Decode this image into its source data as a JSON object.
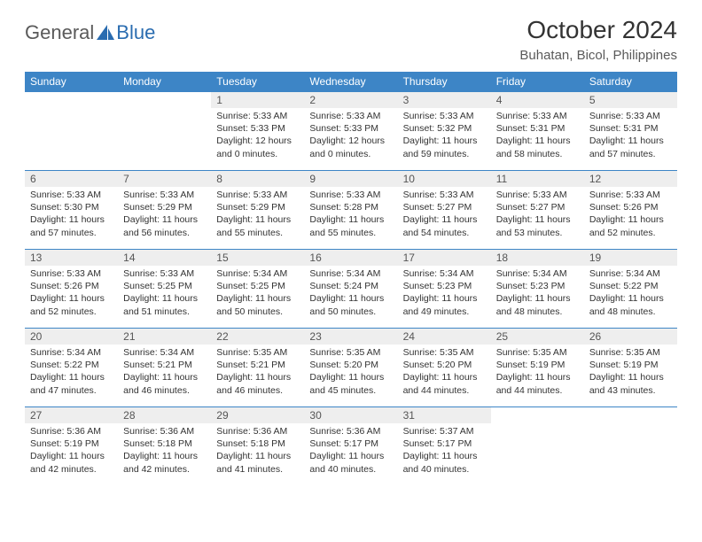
{
  "brand": {
    "part1": "General",
    "part2": "Blue"
  },
  "title": "October 2024",
  "location": "Buhatan, Bicol, Philippines",
  "colors": {
    "header_bg": "#3d85c6",
    "header_text": "#ffffff",
    "daynum_bg": "#eeeeee",
    "cell_border": "#3d85c6",
    "body_text": "#333333",
    "logo_gray": "#5a5a5a",
    "logo_blue": "#2a6cb0"
  },
  "weekdays": [
    "Sunday",
    "Monday",
    "Tuesday",
    "Wednesday",
    "Thursday",
    "Friday",
    "Saturday"
  ],
  "weeks": [
    [
      null,
      null,
      {
        "n": "1",
        "sr": "Sunrise: 5:33 AM",
        "ss": "Sunset: 5:33 PM",
        "dl": "Daylight: 12 hours and 0 minutes."
      },
      {
        "n": "2",
        "sr": "Sunrise: 5:33 AM",
        "ss": "Sunset: 5:33 PM",
        "dl": "Daylight: 12 hours and 0 minutes."
      },
      {
        "n": "3",
        "sr": "Sunrise: 5:33 AM",
        "ss": "Sunset: 5:32 PM",
        "dl": "Daylight: 11 hours and 59 minutes."
      },
      {
        "n": "4",
        "sr": "Sunrise: 5:33 AM",
        "ss": "Sunset: 5:31 PM",
        "dl": "Daylight: 11 hours and 58 minutes."
      },
      {
        "n": "5",
        "sr": "Sunrise: 5:33 AM",
        "ss": "Sunset: 5:31 PM",
        "dl": "Daylight: 11 hours and 57 minutes."
      }
    ],
    [
      {
        "n": "6",
        "sr": "Sunrise: 5:33 AM",
        "ss": "Sunset: 5:30 PM",
        "dl": "Daylight: 11 hours and 57 minutes."
      },
      {
        "n": "7",
        "sr": "Sunrise: 5:33 AM",
        "ss": "Sunset: 5:29 PM",
        "dl": "Daylight: 11 hours and 56 minutes."
      },
      {
        "n": "8",
        "sr": "Sunrise: 5:33 AM",
        "ss": "Sunset: 5:29 PM",
        "dl": "Daylight: 11 hours and 55 minutes."
      },
      {
        "n": "9",
        "sr": "Sunrise: 5:33 AM",
        "ss": "Sunset: 5:28 PM",
        "dl": "Daylight: 11 hours and 55 minutes."
      },
      {
        "n": "10",
        "sr": "Sunrise: 5:33 AM",
        "ss": "Sunset: 5:27 PM",
        "dl": "Daylight: 11 hours and 54 minutes."
      },
      {
        "n": "11",
        "sr": "Sunrise: 5:33 AM",
        "ss": "Sunset: 5:27 PM",
        "dl": "Daylight: 11 hours and 53 minutes."
      },
      {
        "n": "12",
        "sr": "Sunrise: 5:33 AM",
        "ss": "Sunset: 5:26 PM",
        "dl": "Daylight: 11 hours and 52 minutes."
      }
    ],
    [
      {
        "n": "13",
        "sr": "Sunrise: 5:33 AM",
        "ss": "Sunset: 5:26 PM",
        "dl": "Daylight: 11 hours and 52 minutes."
      },
      {
        "n": "14",
        "sr": "Sunrise: 5:33 AM",
        "ss": "Sunset: 5:25 PM",
        "dl": "Daylight: 11 hours and 51 minutes."
      },
      {
        "n": "15",
        "sr": "Sunrise: 5:34 AM",
        "ss": "Sunset: 5:25 PM",
        "dl": "Daylight: 11 hours and 50 minutes."
      },
      {
        "n": "16",
        "sr": "Sunrise: 5:34 AM",
        "ss": "Sunset: 5:24 PM",
        "dl": "Daylight: 11 hours and 50 minutes."
      },
      {
        "n": "17",
        "sr": "Sunrise: 5:34 AM",
        "ss": "Sunset: 5:23 PM",
        "dl": "Daylight: 11 hours and 49 minutes."
      },
      {
        "n": "18",
        "sr": "Sunrise: 5:34 AM",
        "ss": "Sunset: 5:23 PM",
        "dl": "Daylight: 11 hours and 48 minutes."
      },
      {
        "n": "19",
        "sr": "Sunrise: 5:34 AM",
        "ss": "Sunset: 5:22 PM",
        "dl": "Daylight: 11 hours and 48 minutes."
      }
    ],
    [
      {
        "n": "20",
        "sr": "Sunrise: 5:34 AM",
        "ss": "Sunset: 5:22 PM",
        "dl": "Daylight: 11 hours and 47 minutes."
      },
      {
        "n": "21",
        "sr": "Sunrise: 5:34 AM",
        "ss": "Sunset: 5:21 PM",
        "dl": "Daylight: 11 hours and 46 minutes."
      },
      {
        "n": "22",
        "sr": "Sunrise: 5:35 AM",
        "ss": "Sunset: 5:21 PM",
        "dl": "Daylight: 11 hours and 46 minutes."
      },
      {
        "n": "23",
        "sr": "Sunrise: 5:35 AM",
        "ss": "Sunset: 5:20 PM",
        "dl": "Daylight: 11 hours and 45 minutes."
      },
      {
        "n": "24",
        "sr": "Sunrise: 5:35 AM",
        "ss": "Sunset: 5:20 PM",
        "dl": "Daylight: 11 hours and 44 minutes."
      },
      {
        "n": "25",
        "sr": "Sunrise: 5:35 AM",
        "ss": "Sunset: 5:19 PM",
        "dl": "Daylight: 11 hours and 44 minutes."
      },
      {
        "n": "26",
        "sr": "Sunrise: 5:35 AM",
        "ss": "Sunset: 5:19 PM",
        "dl": "Daylight: 11 hours and 43 minutes."
      }
    ],
    [
      {
        "n": "27",
        "sr": "Sunrise: 5:36 AM",
        "ss": "Sunset: 5:19 PM",
        "dl": "Daylight: 11 hours and 42 minutes."
      },
      {
        "n": "28",
        "sr": "Sunrise: 5:36 AM",
        "ss": "Sunset: 5:18 PM",
        "dl": "Daylight: 11 hours and 42 minutes."
      },
      {
        "n": "29",
        "sr": "Sunrise: 5:36 AM",
        "ss": "Sunset: 5:18 PM",
        "dl": "Daylight: 11 hours and 41 minutes."
      },
      {
        "n": "30",
        "sr": "Sunrise: 5:36 AM",
        "ss": "Sunset: 5:17 PM",
        "dl": "Daylight: 11 hours and 40 minutes."
      },
      {
        "n": "31",
        "sr": "Sunrise: 5:37 AM",
        "ss": "Sunset: 5:17 PM",
        "dl": "Daylight: 11 hours and 40 minutes."
      },
      null,
      null
    ]
  ]
}
